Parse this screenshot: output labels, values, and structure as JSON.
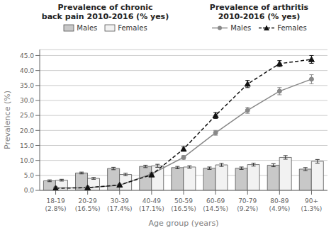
{
  "chart_data": {
    "type": "bar",
    "title": "Prevalence of chronic\nback pain 2010-2016 (% yes)",
    "subtitle": "Prevalence of arthritis\n2010-2016 (% yes)",
    "xlabel": "Age group (years)",
    "ylabel": "Prevalence (%)",
    "categories": [
      "18-19\n(2.8%)",
      "20-29\n(16.5%)",
      "30-39\n(17.4%)",
      "40-49\n(17.1%)",
      "50-59\n(16.5%)",
      "60-69\n(14.5%)",
      "70-79\n(9.2%)",
      "80-89\n(4.9%)",
      "90+\n(1.3%)"
    ],
    "series": [
      {
        "name": "Males",
        "type": "bar",
        "color": "#c8c8c8",
        "values": [
          3.2,
          5.8,
          7.3,
          8.0,
          7.6,
          7.4,
          7.4,
          8.4,
          7.1
        ],
        "error": [
          0.3,
          0.3,
          0.4,
          0.4,
          0.4,
          0.4,
          0.4,
          0.5,
          0.5
        ]
      },
      {
        "name": "Females",
        "type": "bar",
        "color": "#f2f2f2",
        "values": [
          3.4,
          4.0,
          5.3,
          8.2,
          7.8,
          8.5,
          8.6,
          11.0,
          9.7
        ],
        "error": [
          0.3,
          0.3,
          0.4,
          0.5,
          0.4,
          0.5,
          0.5,
          0.6,
          0.6
        ]
      },
      {
        "name": "Males",
        "type": "line",
        "color": "#888888",
        "marker": "circle",
        "line_style": "solid",
        "values": [
          0.8,
          0.9,
          1.7,
          5.5,
          11.0,
          19.2,
          26.7,
          33.1,
          37.1
        ],
        "error": [
          0.2,
          0.1,
          0.2,
          0.4,
          0.6,
          0.8,
          1.0,
          1.2,
          1.5
        ]
      },
      {
        "name": "Females",
        "type": "line",
        "color": "#111111",
        "marker": "triangle",
        "line_style": "dashed",
        "values": [
          0.7,
          0.9,
          1.8,
          5.2,
          13.8,
          25.0,
          35.5,
          42.3,
          43.7
        ],
        "error": [
          0.2,
          0.1,
          0.2,
          0.5,
          0.7,
          1.0,
          1.2,
          1.0,
          1.3
        ]
      }
    ],
    "ylim": [
      0,
      47
    ],
    "yticks": [
      {
        "value": 0,
        "label": "0.0"
      },
      {
        "value": 5,
        "label": "5.0"
      },
      {
        "value": 10,
        "label": "10.0"
      },
      {
        "value": 15,
        "label": "15.0"
      },
      {
        "value": 20,
        "label": "20.0"
      },
      {
        "value": 25,
        "label": "25.0"
      },
      {
        "value": 30,
        "label": "30.0"
      },
      {
        "value": 35,
        "label": "35.0"
      },
      {
        "value": 40,
        "label": "40.0"
      },
      {
        "value": 45,
        "label": "45.0"
      }
    ],
    "grid": true
  }
}
